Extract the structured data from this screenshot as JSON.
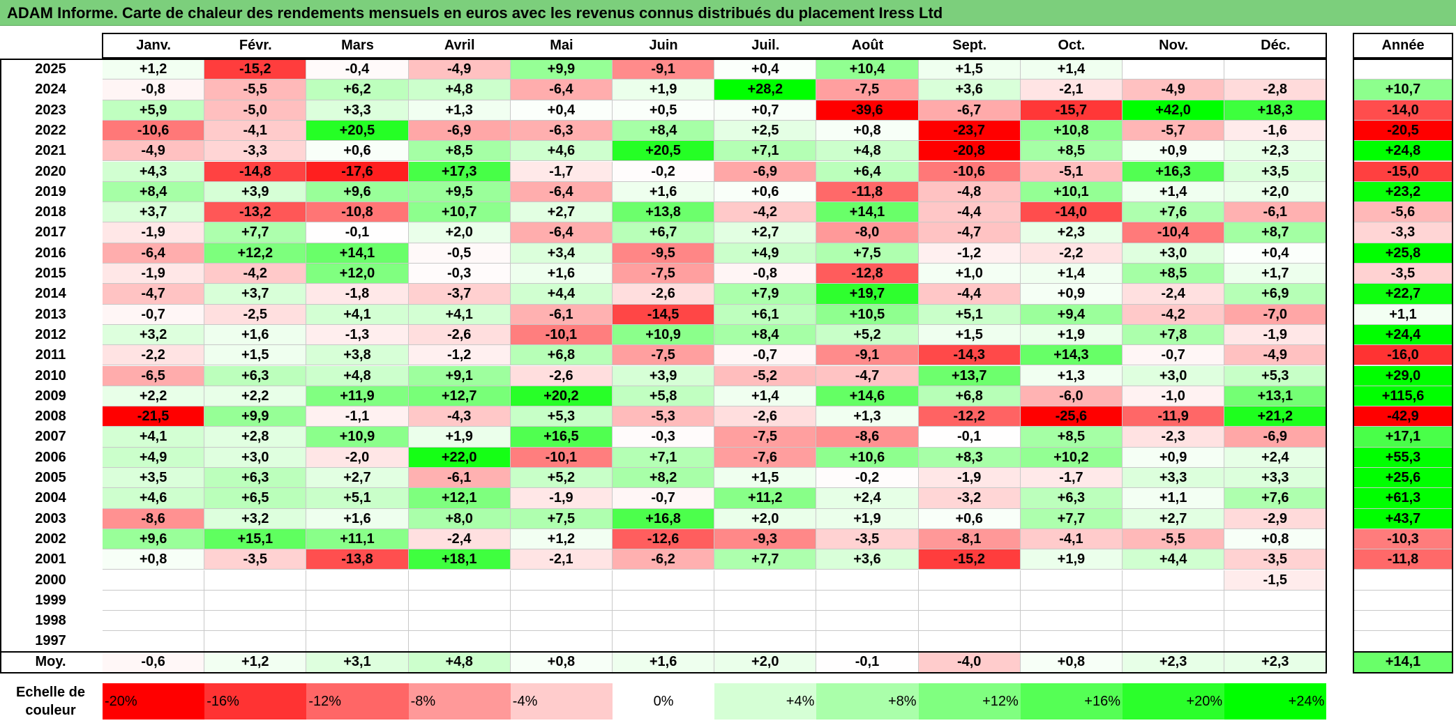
{
  "title": "ADAM Informe. Carte de chaleur des rendements mensuels en euros avec les revenus connus distribués du placement Iress Ltd",
  "chart_data": {
    "type": "heatmap",
    "title": "ADAM Informe. Carte de chaleur des rendements mensuels en euros avec les revenus connus distribués du placement Iress Ltd",
    "months": [
      "Janv.",
      "Févr.",
      "Mars",
      "Avril",
      "Mai",
      "Juin",
      "Juil.",
      "Août",
      "Sept.",
      "Oct.",
      "Nov.",
      "Déc."
    ],
    "year_col_label": "Année",
    "avg_row_label": "Moy.",
    "rows": [
      {
        "year": "2025",
        "values": [
          "+1,2",
          "-15,2",
          "-0,4",
          "-4,9",
          "+9,9",
          "-9,1",
          "+0,4",
          "+10,4",
          "+1,5",
          "+1,4",
          "",
          ""
        ],
        "annual": ""
      },
      {
        "year": "2024",
        "values": [
          "-0,8",
          "-5,5",
          "+6,2",
          "+4,8",
          "-6,4",
          "+1,9",
          "+28,2",
          "-7,5",
          "+3,6",
          "-2,1",
          "-4,9",
          "-2,8"
        ],
        "annual": "+10,7"
      },
      {
        "year": "2023",
        "values": [
          "+5,9",
          "-5,0",
          "+3,3",
          "+1,3",
          "+0,4",
          "+0,5",
          "+0,7",
          "-39,6",
          "-6,7",
          "-15,7",
          "+42,0",
          "+18,3"
        ],
        "annual": "-14,0"
      },
      {
        "year": "2022",
        "values": [
          "-10,6",
          "-4,1",
          "+20,5",
          "-6,9",
          "-6,3",
          "+8,4",
          "+2,5",
          "+0,8",
          "-23,7",
          "+10,8",
          "-5,7",
          "-1,6"
        ],
        "annual": "-20,5"
      },
      {
        "year": "2021",
        "values": [
          "-4,9",
          "-3,3",
          "+0,6",
          "+8,5",
          "+4,6",
          "+20,5",
          "+7,1",
          "+4,8",
          "-20,8",
          "+8,5",
          "+0,9",
          "+2,3"
        ],
        "annual": "+24,8"
      },
      {
        "year": "2020",
        "values": [
          "+4,3",
          "-14,8",
          "-17,6",
          "+17,3",
          "-1,7",
          "-0,2",
          "-6,9",
          "+6,4",
          "-10,6",
          "-5,1",
          "+16,3",
          "+3,5"
        ],
        "annual": "-15,0"
      },
      {
        "year": "2019",
        "values": [
          "+8,4",
          "+3,9",
          "+9,6",
          "+9,5",
          "-6,4",
          "+1,6",
          "+0,6",
          "-11,8",
          "-4,8",
          "+10,1",
          "+1,4",
          "+2,0"
        ],
        "annual": "+23,2"
      },
      {
        "year": "2018",
        "values": [
          "+3,7",
          "-13,2",
          "-10,8",
          "+10,7",
          "+2,7",
          "+13,8",
          "-4,2",
          "+14,1",
          "-4,4",
          "-14,0",
          "+7,6",
          "-6,1"
        ],
        "annual": "-5,6"
      },
      {
        "year": "2017",
        "values": [
          "-1,9",
          "+7,7",
          "-0,1",
          "+2,0",
          "-6,4",
          "+6,7",
          "+2,7",
          "-8,0",
          "-4,7",
          "+2,3",
          "-10,4",
          "+8,7"
        ],
        "annual": "-3,3"
      },
      {
        "year": "2016",
        "values": [
          "-6,4",
          "+12,2",
          "+14,1",
          "-0,5",
          "+3,4",
          "-9,5",
          "+4,9",
          "+7,5",
          "-1,2",
          "-2,2",
          "+3,0",
          "+0,4"
        ],
        "annual": "+25,8"
      },
      {
        "year": "2015",
        "values": [
          "-1,9",
          "-4,2",
          "+12,0",
          "-0,3",
          "+1,6",
          "-7,5",
          "-0,8",
          "-12,8",
          "+1,0",
          "+1,4",
          "+8,5",
          "+1,7"
        ],
        "annual": "-3,5"
      },
      {
        "year": "2014",
        "values": [
          "-4,7",
          "+3,7",
          "-1,8",
          "-3,7",
          "+4,4",
          "-2,6",
          "+7,9",
          "+19,7",
          "-4,4",
          "+0,9",
          "-2,4",
          "+6,9"
        ],
        "annual": "+22,7"
      },
      {
        "year": "2013",
        "values": [
          "-0,7",
          "-2,5",
          "+4,1",
          "+4,1",
          "-6,1",
          "-14,5",
          "+6,1",
          "+10,5",
          "+5,1",
          "+9,4",
          "-4,2",
          "-7,0"
        ],
        "annual": "+1,1"
      },
      {
        "year": "2012",
        "values": [
          "+3,2",
          "+1,6",
          "-1,3",
          "-2,6",
          "-10,1",
          "+10,9",
          "+8,4",
          "+5,2",
          "+1,5",
          "+1,9",
          "+7,8",
          "-1,9"
        ],
        "annual": "+24,4"
      },
      {
        "year": "2011",
        "values": [
          "-2,2",
          "+1,5",
          "+3,8",
          "-1,2",
          "+6,8",
          "-7,5",
          "-0,7",
          "-9,1",
          "-14,3",
          "+14,3",
          "-0,7",
          "-4,9"
        ],
        "annual": "-16,0"
      },
      {
        "year": "2010",
        "values": [
          "-6,5",
          "+6,3",
          "+4,8",
          "+9,1",
          "-2,6",
          "+3,9",
          "-5,2",
          "-4,7",
          "+13,7",
          "+1,3",
          "+3,0",
          "+5,3"
        ],
        "annual": "+29,0"
      },
      {
        "year": "2009",
        "values": [
          "+2,2",
          "+2,2",
          "+11,9",
          "+12,7",
          "+20,2",
          "+5,8",
          "+1,4",
          "+14,6",
          "+6,8",
          "-6,0",
          "-1,0",
          "+13,1"
        ],
        "annual": "+115,6"
      },
      {
        "year": "2008",
        "values": [
          "-21,5",
          "+9,9",
          "-1,1",
          "-4,3",
          "+5,3",
          "-5,3",
          "-2,6",
          "+1,3",
          "-12,2",
          "-25,6",
          "-11,9",
          "+21,2"
        ],
        "annual": "-42,9"
      },
      {
        "year": "2007",
        "values": [
          "+4,1",
          "+2,8",
          "+10,9",
          "+1,9",
          "+16,5",
          "-0,3",
          "-7,5",
          "-8,6",
          "-0,1",
          "+8,5",
          "-2,3",
          "-6,9"
        ],
        "annual": "+17,1"
      },
      {
        "year": "2006",
        "values": [
          "+4,9",
          "+3,0",
          "-2,0",
          "+22,0",
          "-10,1",
          "+7,1",
          "-7,6",
          "+10,6",
          "+8,3",
          "+10,2",
          "+0,9",
          "+2,4"
        ],
        "annual": "+55,3"
      },
      {
        "year": "2005",
        "values": [
          "+3,5",
          "+6,3",
          "+2,7",
          "-6,1",
          "+5,2",
          "+8,2",
          "+1,5",
          "-0,2",
          "-1,9",
          "-1,7",
          "+3,3",
          "+3,3"
        ],
        "annual": "+25,6"
      },
      {
        "year": "2004",
        "values": [
          "+4,6",
          "+6,5",
          "+5,1",
          "+12,1",
          "-1,9",
          "-0,7",
          "+11,2",
          "+2,4",
          "-3,2",
          "+6,3",
          "+1,1",
          "+7,6"
        ],
        "annual": "+61,3"
      },
      {
        "year": "2003",
        "values": [
          "-8,6",
          "+3,2",
          "+1,6",
          "+8,0",
          "+7,5",
          "+16,8",
          "+2,0",
          "+1,9",
          "+0,6",
          "+7,7",
          "+2,7",
          "-2,9"
        ],
        "annual": "+43,7"
      },
      {
        "year": "2002",
        "values": [
          "+9,6",
          "+15,1",
          "+11,1",
          "-2,4",
          "+1,2",
          "-12,6",
          "-9,3",
          "-3,5",
          "-8,1",
          "-4,1",
          "-5,5",
          "+0,8"
        ],
        "annual": "-10,3"
      },
      {
        "year": "2001",
        "values": [
          "+0,8",
          "-3,5",
          "-13,8",
          "+18,1",
          "-2,1",
          "-6,2",
          "+7,7",
          "+3,6",
          "-15,2",
          "+1,9",
          "+4,4",
          "-3,5"
        ],
        "annual": "-11,8"
      },
      {
        "year": "2000",
        "values": [
          "",
          "",
          "",
          "",
          "",
          "",
          "",
          "",
          "",
          "",
          "",
          "-1,5"
        ],
        "annual": ""
      },
      {
        "year": "1999",
        "values": [
          "",
          "",
          "",
          "",
          "",
          "",
          "",
          "",
          "",
          "",
          "",
          ""
        ],
        "annual": ""
      },
      {
        "year": "1998",
        "values": [
          "",
          "",
          "",
          "",
          "",
          "",
          "",
          "",
          "",
          "",
          "",
          ""
        ],
        "annual": ""
      },
      {
        "year": "1997",
        "values": [
          "",
          "",
          "",
          "",
          "",
          "",
          "",
          "",
          "",
          "",
          "",
          ""
        ],
        "annual": ""
      }
    ],
    "averages": [
      "-0,6",
      "+1,2",
      "+3,1",
      "+4,8",
      "+0,8",
      "+1,6",
      "+2,0",
      "-0,1",
      "-4,0",
      "+0,8",
      "+2,3",
      "+2,3"
    ],
    "average_annual": "+14,1",
    "scale_label_line1": "Echelle de",
    "scale_label_line2": "couleur",
    "scale": [
      {
        "label": "-20%",
        "value": -20,
        "align": "left"
      },
      {
        "label": "-16%",
        "value": -16,
        "align": "left"
      },
      {
        "label": "-12%",
        "value": -12,
        "align": "left"
      },
      {
        "label": "-8%",
        "value": -8,
        "align": "left"
      },
      {
        "label": "-4%",
        "value": -4,
        "align": "left"
      },
      {
        "label": "0%",
        "value": 0,
        "align": "center"
      },
      {
        "label": "+4%",
        "value": 4,
        "align": "right"
      },
      {
        "label": "+8%",
        "value": 8,
        "align": "right"
      },
      {
        "label": "+12%",
        "value": 12,
        "align": "right"
      },
      {
        "label": "+16%",
        "value": 16,
        "align": "right"
      },
      {
        "label": "+20%",
        "value": 20,
        "align": "right"
      },
      {
        "label": "+24%",
        "value": 24,
        "align": "right"
      }
    ],
    "colors": {
      "negative_max": "#ff0000",
      "neutral": "#ffffff",
      "positive_max": "#00ff00",
      "title_bar": "#7ccf7c"
    }
  }
}
